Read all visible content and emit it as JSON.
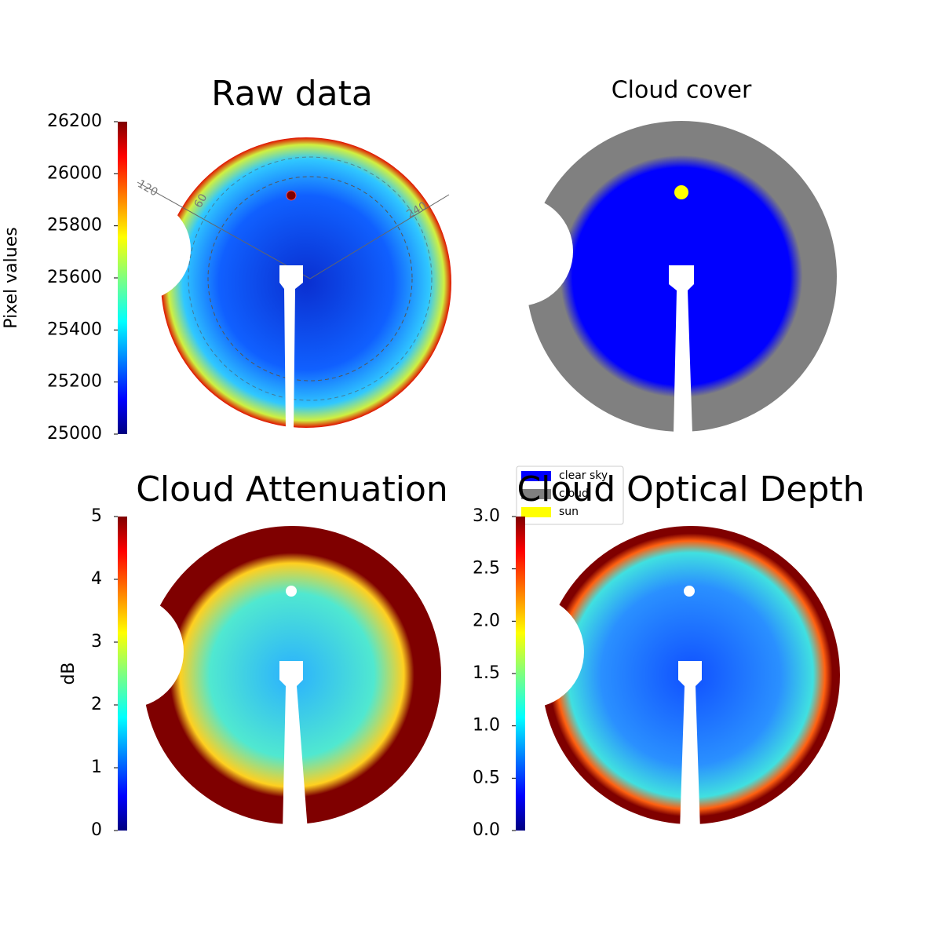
{
  "chart_data": [
    {
      "type": "image",
      "title": "Raw data",
      "colorbar": {
        "label": "Pixel values",
        "lim": [
          25000,
          26200
        ],
        "ticks": [
          25000,
          25200,
          25400,
          25600,
          25800,
          26000,
          26200
        ]
      },
      "polar_labels": [
        "120",
        "60",
        "240"
      ]
    },
    {
      "type": "image",
      "title": "Cloud cover",
      "legend": [
        {
          "name": "clear sky",
          "color": "#0000ff"
        },
        {
          "name": "cloud",
          "color": "#808080"
        },
        {
          "name": "sun",
          "color": "#ffff00"
        }
      ]
    },
    {
      "type": "image",
      "title": "Cloud Attenuation",
      "colorbar": {
        "label": "dB",
        "lim": [
          0,
          5
        ],
        "ticks": [
          0,
          1,
          2,
          3,
          4,
          5
        ]
      }
    },
    {
      "type": "image",
      "title": "Cloud Optical Depth",
      "colorbar": {
        "lim": [
          0,
          3
        ],
        "ticks": [
          {
            "value": 0,
            "label": "0.0"
          },
          0.5,
          {
            "value": 1,
            "label": "1.0"
          },
          1.5,
          {
            "value": 2,
            "label": "2.0"
          },
          2.5,
          {
            "value": 3,
            "label": "3.0"
          }
        ]
      }
    }
  ]
}
